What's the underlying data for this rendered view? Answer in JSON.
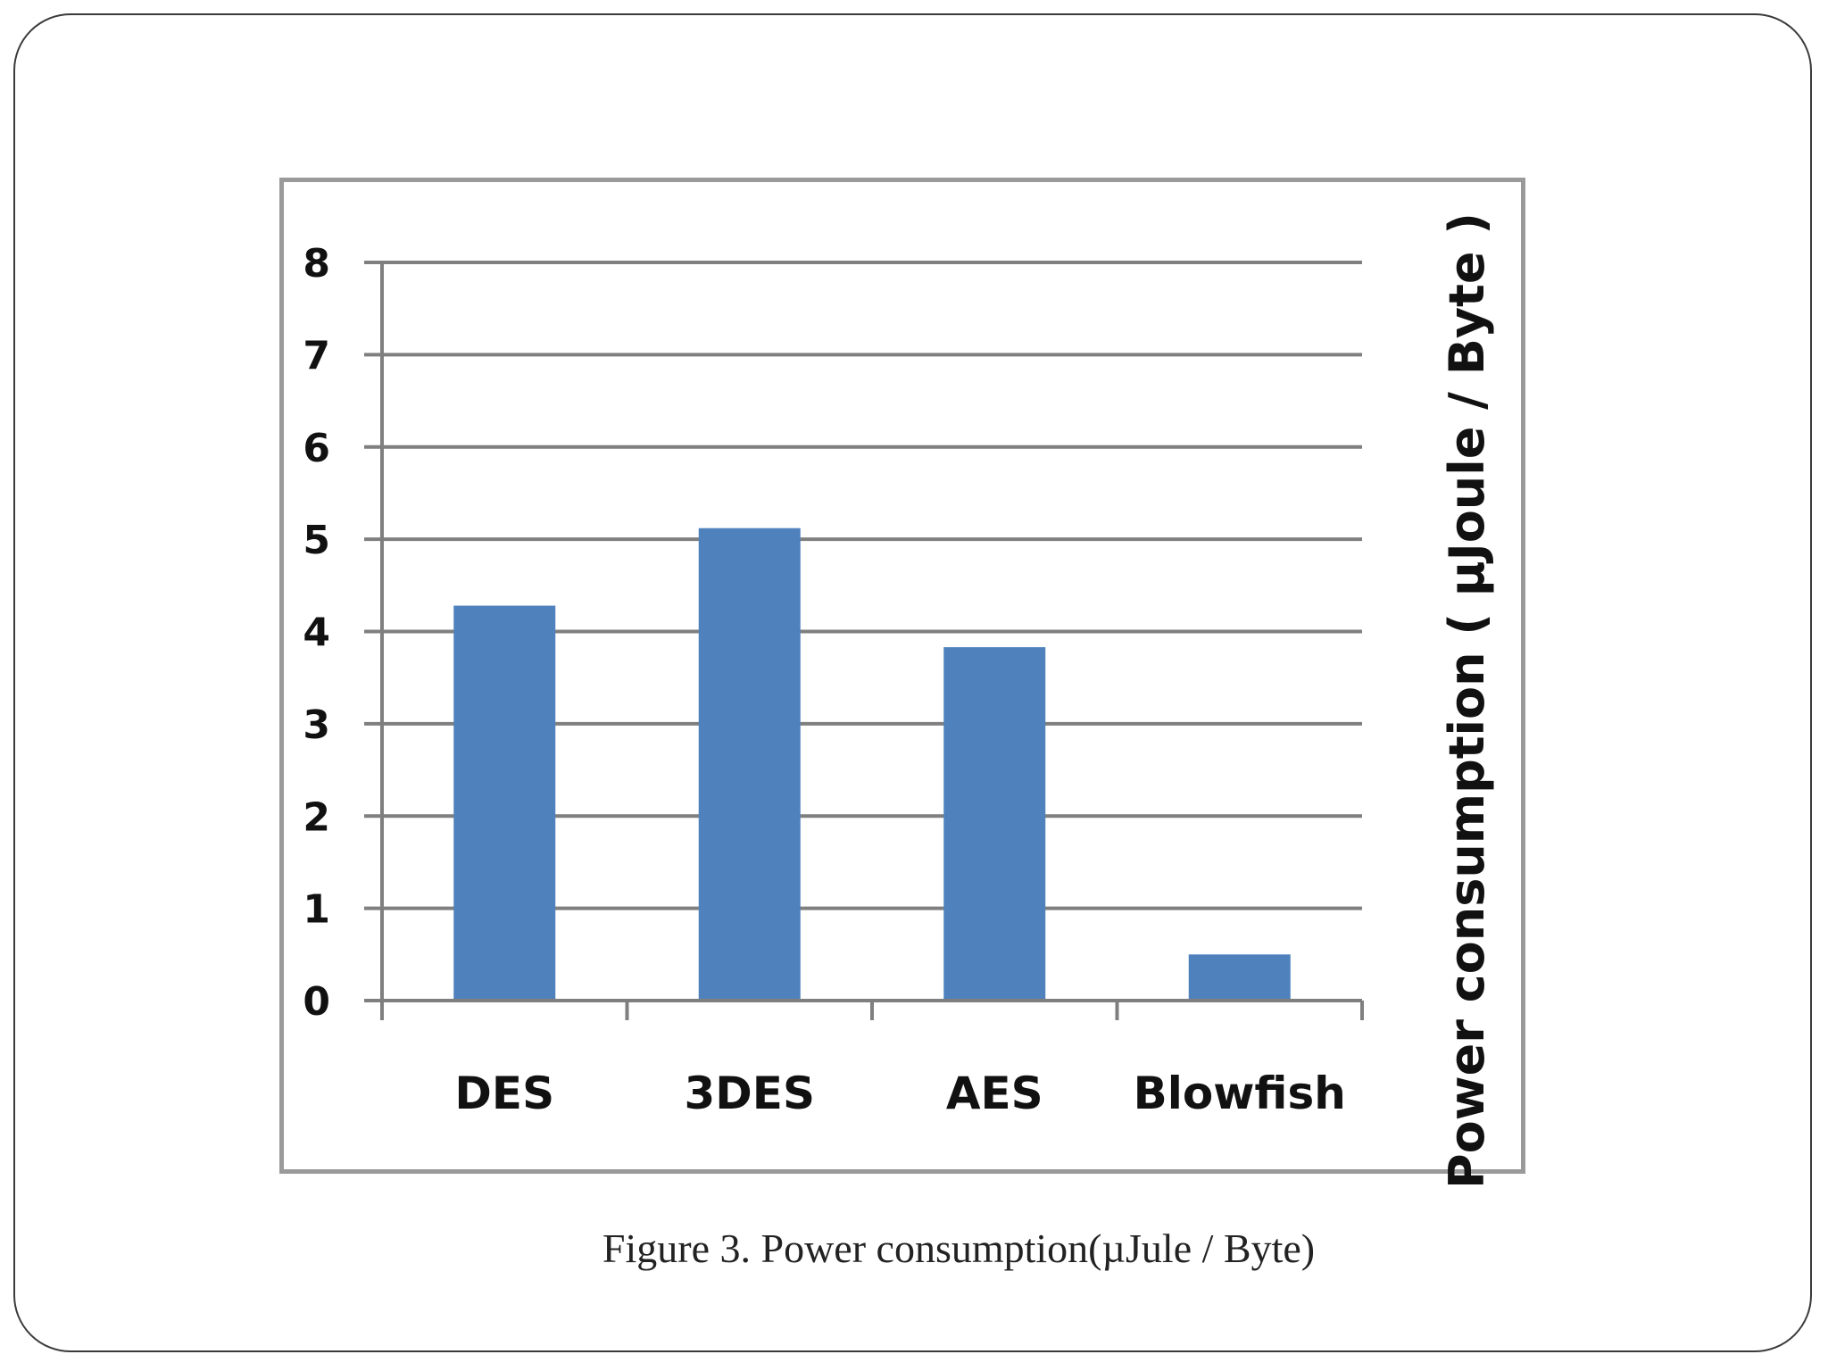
{
  "caption": "Figure 3. Power consumption(µJule / Byte)",
  "chart_data": {
    "type": "bar",
    "categories": [
      "DES",
      "3DES",
      "AES",
      "Blowfish"
    ],
    "values": [
      4.28,
      5.12,
      3.83,
      0.5
    ],
    "title": "",
    "xlabel": "",
    "ylabel": "Power consumption (  µJoule / Byte )",
    "ylim": [
      0,
      8
    ],
    "yticks": [
      "0",
      "1",
      "2",
      "3",
      "4",
      "5",
      "6",
      "7",
      "8"
    ],
    "grid": "horizontal",
    "legend": "none",
    "bar_color": "#4f81bd",
    "gridline_color": "#7f7f7f"
  }
}
